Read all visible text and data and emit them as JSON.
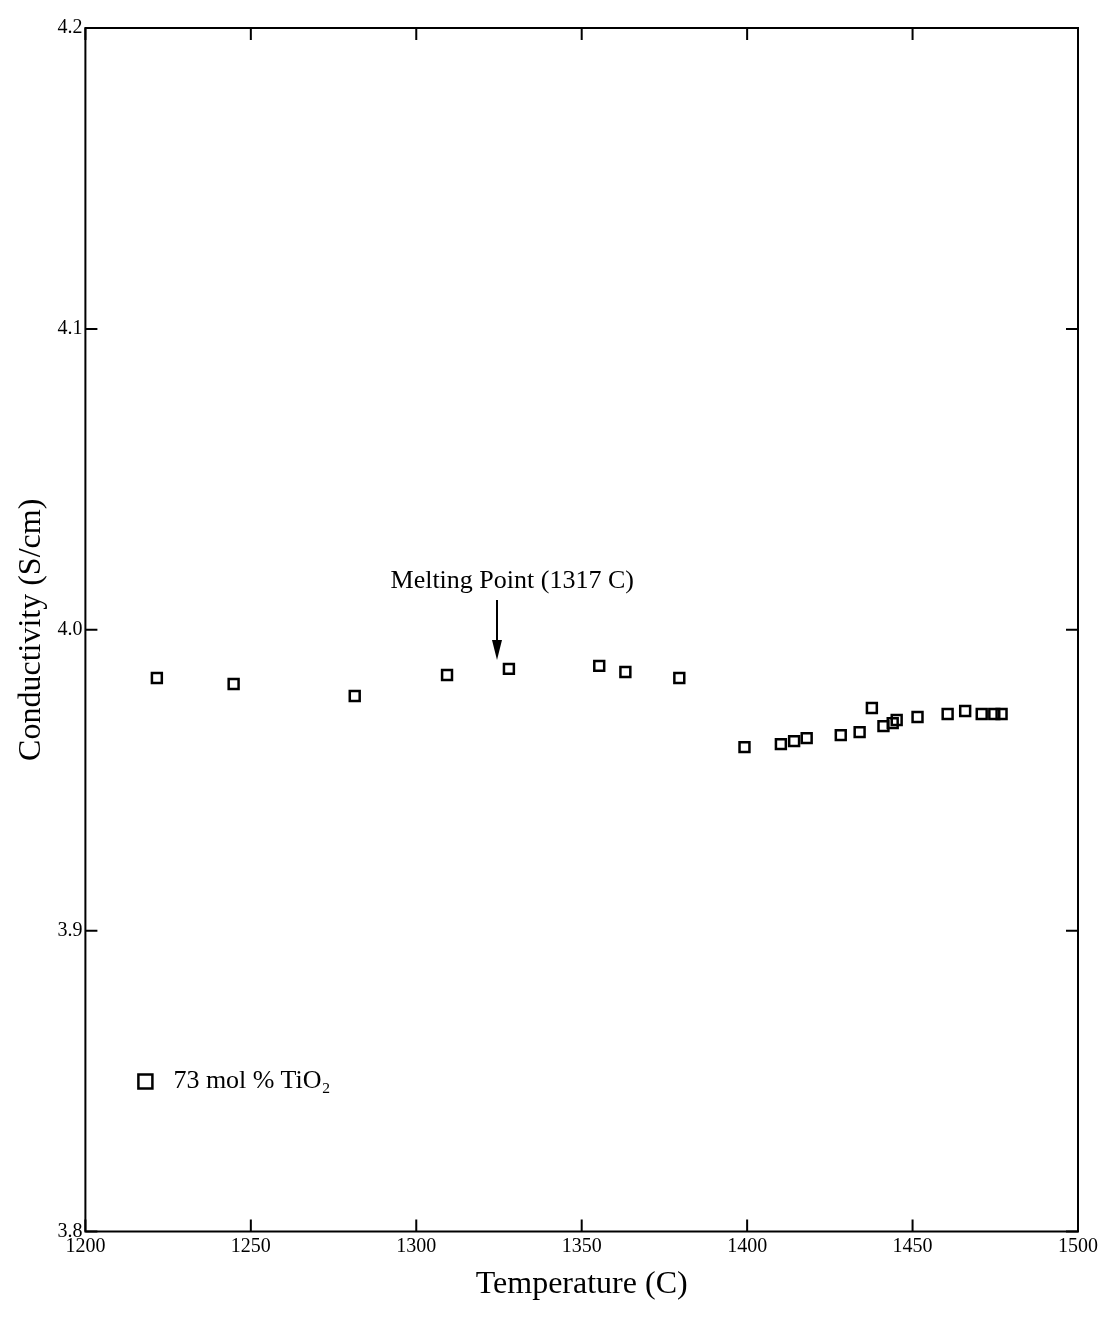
{
  "chart_data": {
    "type": "scatter",
    "xlabel": "Temperature (C)",
    "ylabel": "Conductivity (S/cm)",
    "x": [
      1221.6,
      1244.8,
      1281.4,
      1309.3,
      1328,
      1355.3,
      1363.2,
      1379.5,
      1399.2,
      1410.2,
      1414.2,
      1418,
      1428.3,
      1434,
      1437.7,
      1441.2,
      1444,
      1445.2,
      1451.5,
      1460.6,
      1465.9,
      1470.9,
      1474.7,
      1476.9
    ],
    "series": [
      {
        "name": "73 mol % TiO₂",
        "color": "#000000",
        "values": [
          3.984,
          3.982,
          3.978,
          3.985,
          3.987,
          3.988,
          3.986,
          3.984,
          3.961,
          3.962,
          3.963,
          3.964,
          3.965,
          3.966,
          3.974,
          3.968,
          3.969,
          3.97,
          3.971,
          3.972,
          3.973,
          3.972,
          3.972,
          3.972
        ]
      }
    ],
    "xlim": [
      1200,
      1500
    ],
    "xticks": [
      1200,
      1250,
      1300,
      1350,
      1400,
      1450,
      1500
    ],
    "ylim": [
      3.8,
      4.2
    ],
    "yticks": [
      3.8,
      3.9,
      {
        "value": 4,
        "label": "4.0"
      },
      4.1,
      4.2
    ],
    "annotations": [
      "Melting Point (1317 C)"
    ],
    "marker": "square",
    "grid": false,
    "legend": "bottom left"
  }
}
